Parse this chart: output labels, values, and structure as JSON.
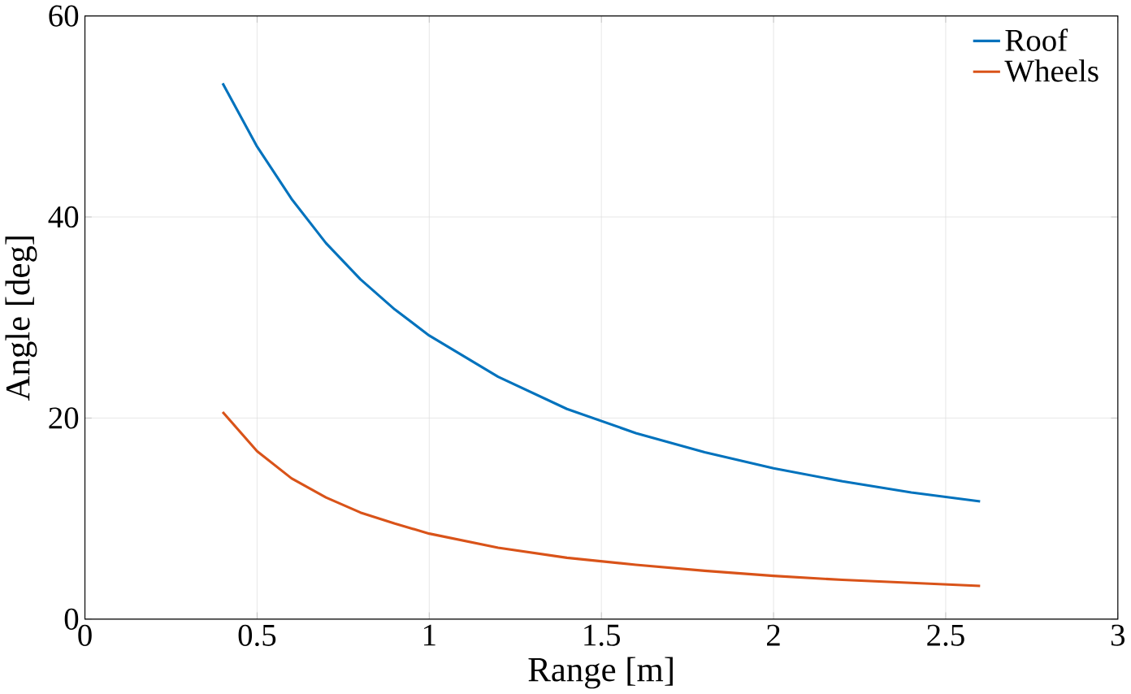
{
  "chart_data": {
    "type": "line",
    "xlabel": "Range [m]",
    "ylabel": "Angle [deg]",
    "x": [
      0.4,
      0.5,
      0.6,
      0.7,
      0.8,
      0.9,
      1.0,
      1.2,
      1.4,
      1.6,
      1.8,
      2.0,
      2.2,
      2.4,
      2.6
    ],
    "series": [
      {
        "name": "Roof",
        "color": "#0072bd",
        "values": [
          53.3,
          47.0,
          41.8,
          37.4,
          33.8,
          30.8,
          28.2,
          24.1,
          20.9,
          18.5,
          16.6,
          15.0,
          13.7,
          12.6,
          11.7
        ]
      },
      {
        "name": "Wheels",
        "color": "#d95319",
        "values": [
          20.6,
          16.7,
          14.0,
          12.1,
          10.6,
          9.5,
          8.5,
          7.1,
          6.1,
          5.4,
          4.8,
          4.3,
          3.9,
          3.6,
          3.3
        ]
      }
    ],
    "xlim": [
      0,
      3
    ],
    "ylim": [
      0,
      60
    ],
    "xticks": [
      0,
      0.5,
      1,
      1.5,
      2,
      2.5,
      3
    ],
    "yticks": [
      0,
      20,
      40,
      60
    ],
    "grid": true,
    "legend": "top right",
    "marker": "none",
    "line_style": "solid"
  }
}
